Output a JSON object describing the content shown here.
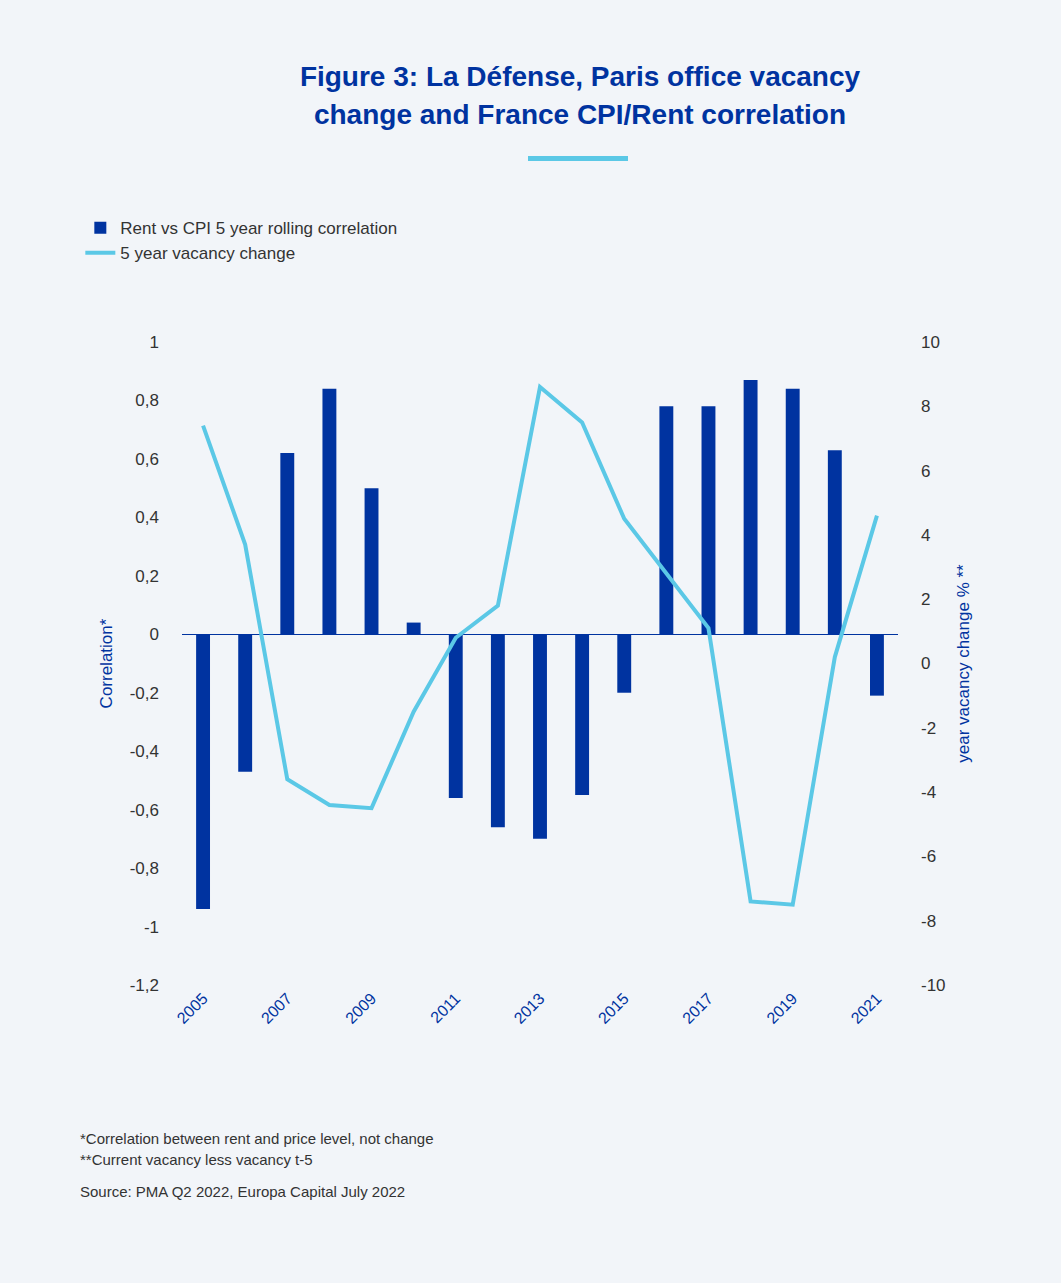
{
  "chart_data": {
    "type": "bar",
    "title": "Figure 3: La Défense, Paris office vacancy change and France CPI/Rent correlation",
    "categories": [
      "2005",
      null,
      "2007",
      null,
      "2009",
      null,
      "2011",
      null,
      "2013",
      null,
      "2015",
      null,
      "2017",
      null,
      "2019",
      null,
      "2021"
    ],
    "series": [
      {
        "name": "Rent vs CPI 5 year rolling correlation",
        "type": "bar",
        "color": "#0033a0",
        "values": [
          -0.94,
          -0.47,
          0.62,
          0.84,
          0.5,
          0.04,
          -0.56,
          -0.66,
          -0.7,
          -0.55,
          -0.2,
          0.78,
          0.78,
          0.87,
          0.84,
          0.63,
          -0.21
        ]
      },
      {
        "name": "5 year vacancy change",
        "type": "line",
        "axis": "y2",
        "color": "#5bc8e6",
        "values": [
          7.4,
          3.7,
          -3.6,
          -4.4,
          -4.5,
          -1.5,
          0.8,
          1.8,
          8.6,
          7.5,
          4.5,
          2.8,
          1.1,
          -7.4,
          -7.5,
          0.2,
          4.6
        ]
      }
    ],
    "y_label": "Correlation*",
    "y2_label": "year vacancy change % **",
    "ylim": [
      -1.2,
      1
    ],
    "yticks": [
      {
        "value": -1.2,
        "label": "-1,2"
      },
      -1,
      {
        "value": -0.8,
        "label": "-0,8"
      },
      {
        "value": -0.6,
        "label": "-0,6"
      },
      {
        "value": -0.4,
        "label": "-0,4"
      },
      {
        "value": -0.2,
        "label": "-0,2"
      },
      0,
      {
        "value": 0.2,
        "label": "0,2"
      },
      {
        "value": 0.4,
        "label": "0,4"
      },
      {
        "value": 0.6,
        "label": "0,6"
      },
      {
        "value": 0.8,
        "label": "0,8"
      },
      1
    ],
    "y2lim": [
      -10,
      10
    ],
    "y2ticks": [
      -10,
      -8,
      -6,
      -4,
      -2,
      0,
      2,
      4,
      6,
      8,
      10
    ],
    "grid": false,
    "legend": "top-left",
    "notes": [
      "*Correlation between rent and price level, not change",
      "**Current vacancy less vacancy t-5"
    ],
    "source": "Source: PMA Q2 2022, Europa Capital July 2022"
  }
}
